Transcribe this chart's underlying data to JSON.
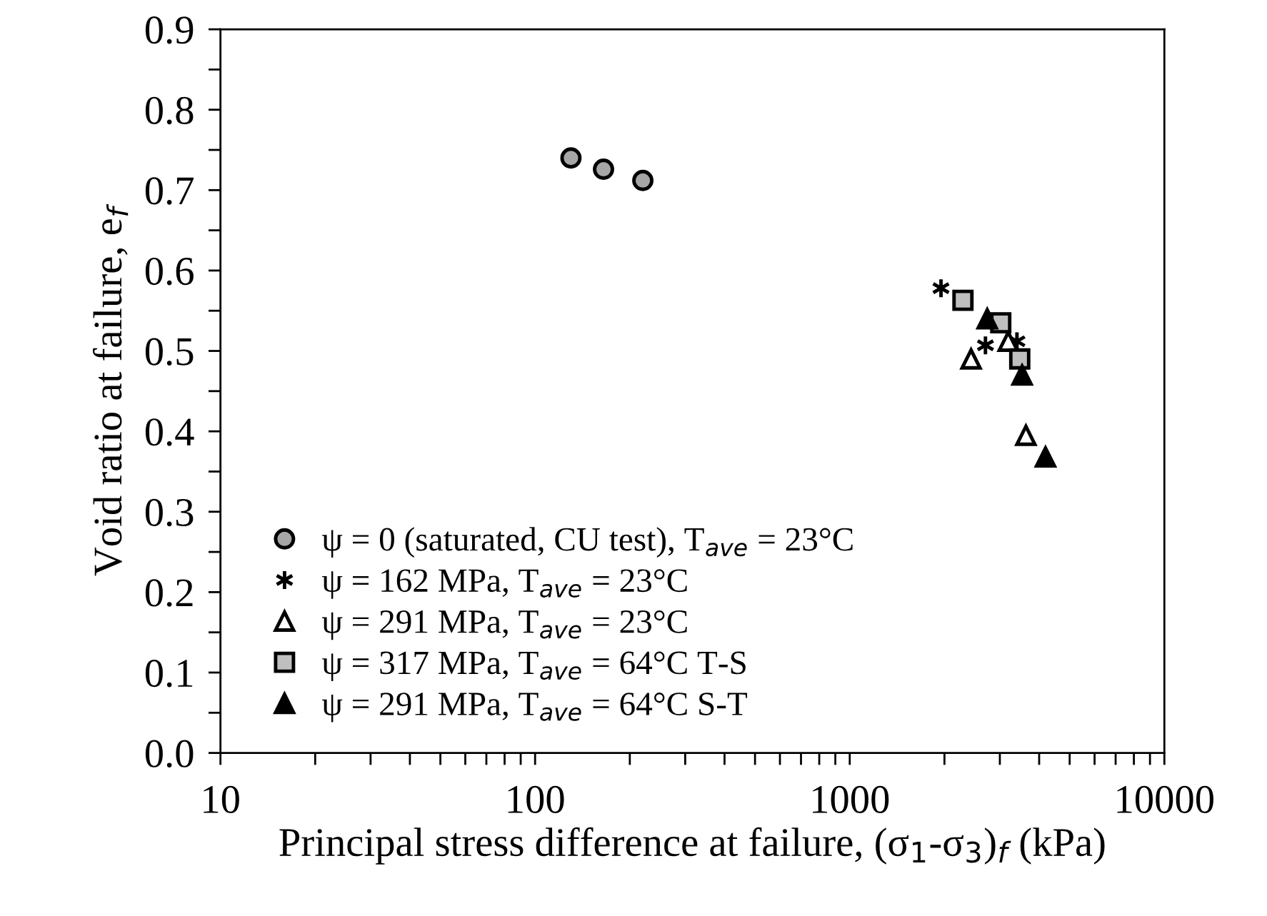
{
  "chart_data": {
    "type": "scatter",
    "xlabel": "Principal stress difference at failure, (σ$_{1}$-σ$_{3}$)$_{f}$ (kPa)",
    "ylabel": "Void ratio at failure, e$_{f}$",
    "log": "x",
    "xlim": [
      10,
      10000
    ],
    "xticks": [
      10,
      100,
      1000,
      10000
    ],
    "ylim": [
      0.0,
      0.9
    ],
    "yticks": [
      {
        "value": 0,
        "label": "0.0"
      },
      0.1,
      0.2,
      0.3,
      0.4,
      0.5,
      0.6,
      0.7,
      0.8,
      0.9
    ],
    "grid": false,
    "legend": "bottom left",
    "series": [
      {
        "name": "ψ = 0 (saturated, CU test), T$_{ave}$ = 23°C",
        "color": "#a6a6a6",
        "marker": "circle",
        "x": [
          130,
          165,
          220
        ],
        "values": [
          0.74,
          0.726,
          0.712
        ]
      },
      {
        "name": "ψ = 162 MPa, T$_{ave}$ = 23°C",
        "color": "#000000",
        "marker": "cross",
        "x": [
          1950,
          2700,
          3400
        ],
        "values": [
          0.578,
          0.507,
          0.512
        ]
      },
      {
        "name": "ψ = 291 MPa, T$_{ave}$ = 23°C",
        "color": "#ffffff",
        "marker": "triangle",
        "x": [
          2430,
          3190,
          3630
        ],
        "values": [
          0.49,
          0.512,
          0.395
        ]
      },
      {
        "name": "ψ = 317 MPa, T$_{ave}$ = 64°C T-S",
        "color": "#bfbfbf",
        "marker": "square",
        "x": [
          2290,
          3020,
          3470
        ],
        "values": [
          0.563,
          0.535,
          0.49
        ]
      },
      {
        "name": "ψ = 291 MPa, T$_{ave}$ = 64°C S-T",
        "color": "#000000",
        "marker": "triangle",
        "x": [
          2735,
          3530,
          4190
        ],
        "values": [
          0.54,
          0.47,
          0.368
        ]
      }
    ]
  }
}
